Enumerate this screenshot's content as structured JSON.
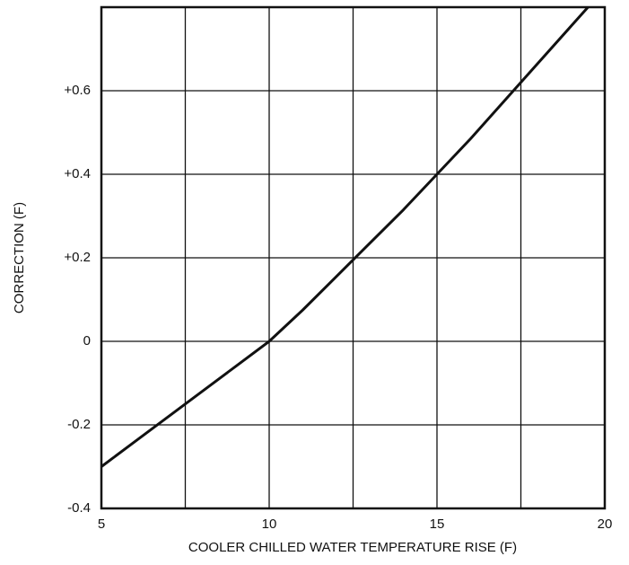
{
  "chart_data": {
    "type": "line",
    "xlabel": "COOLER CHILLED WATER TEMPERATURE RISE (F)",
    "ylabel": "CORRECTION (F)",
    "xlim": [
      5,
      20
    ],
    "ylim": [
      -0.4,
      0.8
    ],
    "xticks": [
      5,
      10,
      15,
      20
    ],
    "x_minor_grid": [
      7.5,
      12.5,
      17.5
    ],
    "yticks": [
      -0.4,
      -0.2,
      0,
      {
        "value": 0.2,
        "label": "+0.2"
      },
      {
        "value": 0.4,
        "label": "+0.4"
      },
      {
        "value": 0.6,
        "label": "+0.6"
      }
    ],
    "grid": true,
    "series": [
      {
        "color": "#111111",
        "x": [
          5,
          6,
          7,
          8,
          9,
          10,
          11,
          12,
          13,
          14,
          15,
          16,
          17,
          18,
          19,
          19.5
        ],
        "values": [
          -0.3,
          -0.24,
          -0.18,
          -0.12,
          -0.06,
          0.0,
          0.075,
          0.155,
          0.235,
          0.315,
          0.4,
          0.485,
          0.575,
          0.665,
          0.755,
          0.8
        ]
      }
    ]
  }
}
